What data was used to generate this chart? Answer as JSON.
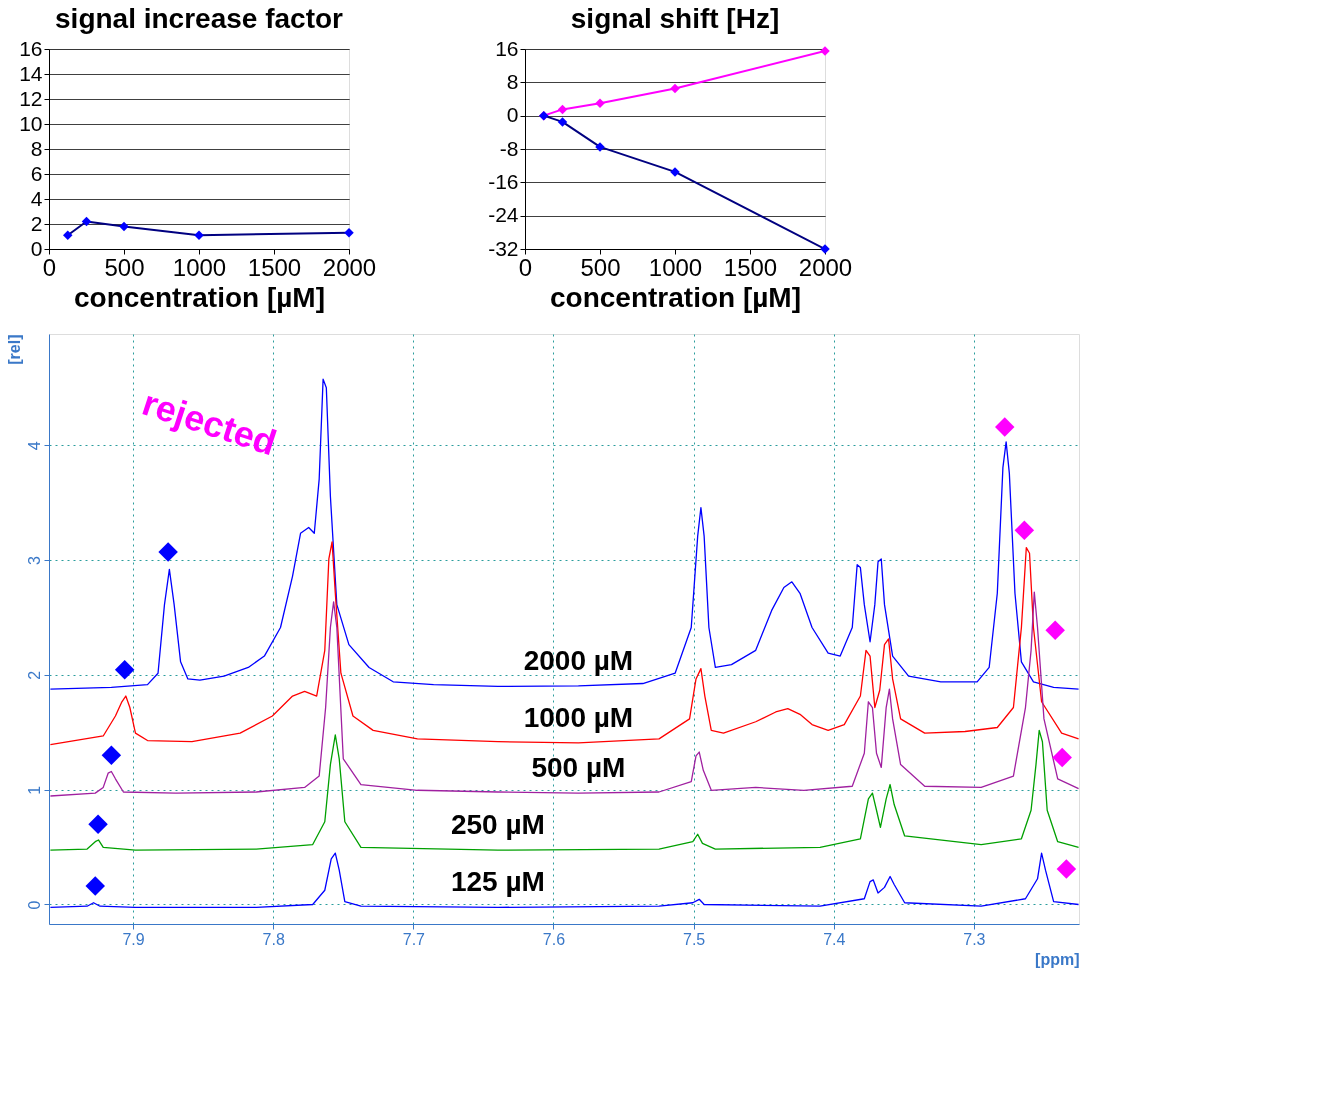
{
  "chart_data": [
    {
      "type": "line",
      "xlabel": "[ppm]",
      "ylabel": "[rel]",
      "xlim": [
        7.96,
        7.225
      ],
      "ylim": [
        -0.17,
        4.97
      ],
      "xticks": [
        7.9,
        7.8,
        7.7,
        7.6,
        7.5,
        7.4,
        7.3
      ],
      "yticks": [
        0,
        1,
        2,
        3,
        4
      ],
      "grid": true,
      "annotations": [
        "rejected"
      ],
      "series": [
        {
          "name": "2000 µM",
          "color": "#0000ff",
          "x": [
            7.959,
            7.9155,
            7.8897,
            7.8822,
            7.8776,
            7.8741,
            7.8707,
            7.8661,
            7.8609,
            7.8523,
            7.8351,
            7.8178,
            7.8063,
            7.7948,
            7.7862,
            7.7805,
            7.7747,
            7.7707,
            7.7672,
            7.7644,
            7.7621,
            7.7592,
            7.7546,
            7.746,
            7.7316,
            7.7144,
            7.6856,
            7.6397,
            7.5822,
            7.5362,
            7.5132,
            7.5017,
            7.4971,
            7.4948,
            7.4925,
            7.4891,
            7.4845,
            7.473,
            7.4557,
            7.4443,
            7.4356,
            7.4299,
            7.4241,
            7.4155,
            7.404,
            7.3954,
            7.3868,
            7.3833,
            7.381,
            7.3782,
            7.3741,
            7.3707,
            7.3684,
            7.3661,
            7.3638,
            7.358,
            7.3466,
            7.3236,
            7.2977,
            7.2891,
            7.2833,
            7.2793,
            7.277,
            7.2747,
            7.2707,
            7.2661,
            7.2575,
            7.2431,
            7.2253
          ],
          "values": [
            1.876,
            1.891,
            1.915,
            2.015,
            2.612,
            2.92,
            2.612,
            2.114,
            1.965,
            1.955,
            1.99,
            2.065,
            2.164,
            2.413,
            2.861,
            3.234,
            3.284,
            3.234,
            3.706,
            4.577,
            4.502,
            3.557,
            2.612,
            2.264,
            2.065,
            1.94,
            1.915,
            1.9,
            1.905,
            1.925,
            2.015,
            2.413,
            3.209,
            3.458,
            3.209,
            2.413,
            2.065,
            2.09,
            2.214,
            2.562,
            2.761,
            2.811,
            2.711,
            2.413,
            2.189,
            2.164,
            2.413,
            2.96,
            2.935,
            2.612,
            2.289,
            2.612,
            2.985,
            3.01,
            2.612,
            2.164,
            1.99,
            1.94,
            1.94,
            2.065,
            2.711,
            3.806,
            4.03,
            3.756,
            2.711,
            2.114,
            1.94,
            1.891,
            1.876
          ]
        },
        {
          "name": "1000 µM",
          "color": "#ff0000",
          "x": [
            7.959,
            7.9213,
            7.9126,
            7.908,
            7.9052,
            7.9023,
            7.8983,
            7.8897,
            7.858,
            7.8236,
            7.8006,
            7.7862,
            7.7776,
            7.769,
            7.7632,
            7.7603,
            7.758,
            7.7557,
            7.7517,
            7.7431,
            7.7287,
            7.6971,
            7.6397,
            7.5822,
            7.5247,
            7.5029,
            7.4983,
            7.4948,
            7.492,
            7.4874,
            7.4787,
            7.4557,
            7.4414,
            7.4328,
            7.4241,
            7.4155,
            7.404,
            7.3925,
            7.381,
            7.377,
            7.3741,
            7.3707,
            7.3672,
            7.3638,
            7.3609,
            7.358,
            7.3523,
            7.3351,
            7.3063,
            7.2833,
            7.2718,
            7.2661,
            7.2626,
            7.2603,
            7.2575,
            7.2517,
            7.2374,
            7.2253
          ],
          "values": [
            1.393,
            1.468,
            1.642,
            1.766,
            1.816,
            1.716,
            1.493,
            1.428,
            1.418,
            1.493,
            1.642,
            1.816,
            1.856,
            1.816,
            2.214,
            3.01,
            3.159,
            2.711,
            2.015,
            1.642,
            1.517,
            1.443,
            1.418,
            1.408,
            1.443,
            1.617,
            1.965,
            2.055,
            1.816,
            1.517,
            1.493,
            1.592,
            1.677,
            1.706,
            1.657,
            1.567,
            1.517,
            1.567,
            1.816,
            2.214,
            2.164,
            1.716,
            1.866,
            2.264,
            2.313,
            1.965,
            1.617,
            1.493,
            1.507,
            1.542,
            1.716,
            2.413,
            3.109,
            3.06,
            2.413,
            1.766,
            1.493,
            1.443
          ]
        },
        {
          "name": "500 µM",
          "color": "#a020a0",
          "x": [
            7.959,
            7.927,
            7.9213,
            7.9178,
            7.9155,
            7.9126,
            7.9069,
            7.8695,
            7.8121,
            7.7776,
            7.7672,
            7.7626,
            7.7592,
            7.7569,
            7.7546,
            7.75,
            7.7374,
            7.6971,
            7.6397,
            7.5822,
            7.5247,
            7.5017,
            7.4983,
            7.496,
            7.4931,
            7.4874,
            7.4557,
            7.4213,
            7.3868,
            7.3782,
            7.3753,
            7.3724,
            7.3695,
            7.3661,
            7.3626,
            7.3603,
            7.358,
            7.3523,
            7.3351,
            7.2948,
            7.2718,
            7.2632,
            7.2592,
            7.2569,
            7.2546,
            7.25,
            7.2402,
            7.2253
          ],
          "values": [
            0.945,
            0.97,
            1.02,
            1.144,
            1.159,
            1.095,
            0.98,
            0.97,
            0.98,
            1.02,
            1.119,
            1.716,
            2.413,
            2.637,
            2.413,
            1.269,
            1.045,
            0.995,
            0.98,
            0.97,
            0.98,
            1.07,
            1.294,
            1.328,
            1.169,
            0.995,
            1.02,
            0.995,
            1.03,
            1.318,
            1.766,
            1.716,
            1.318,
            1.194,
            1.716,
            1.876,
            1.617,
            1.219,
            1.03,
            1.02,
            1.119,
            1.716,
            2.214,
            2.721,
            2.413,
            1.617,
            1.095,
            1.01
          ]
        },
        {
          "name": "250 µM",
          "color": "#00a000",
          "x": [
            7.959,
            7.9328,
            7.927,
            7.9247,
            7.9213,
            7.8983,
            7.8121,
            7.7718,
            7.7632,
            7.7592,
            7.7557,
            7.7529,
            7.7489,
            7.7374,
            7.6397,
            7.5247,
            7.5006,
            7.4971,
            7.4937,
            7.4845,
            7.4098,
            7.381,
            7.3753,
            7.3724,
            7.3695,
            7.3667,
            7.3626,
            7.3598,
            7.3569,
            7.3494,
            7.2948,
            7.2661,
            7.2592,
            7.2557,
            7.2534,
            7.2511,
            7.2477,
            7.2402,
            7.2253
          ],
          "values": [
            0.473,
            0.483,
            0.547,
            0.562,
            0.498,
            0.473,
            0.483,
            0.522,
            0.721,
            1.219,
            1.478,
            1.269,
            0.721,
            0.498,
            0.473,
            0.483,
            0.547,
            0.612,
            0.532,
            0.483,
            0.498,
            0.572,
            0.92,
            0.97,
            0.821,
            0.672,
            0.92,
            1.045,
            0.871,
            0.597,
            0.522,
            0.572,
            0.821,
            1.219,
            1.517,
            1.418,
            0.821,
            0.547,
            0.498
          ]
        },
        {
          "name": "125 µM",
          "color": "#0000ff",
          "x": [
            7.959,
            7.9328,
            7.9282,
            7.9236,
            7.8983,
            7.8121,
            7.7718,
            7.7632,
            7.7586,
            7.7557,
            7.7529,
            7.7489,
            7.7374,
            7.6397,
            7.5247,
            7.5006,
            7.496,
            7.4925,
            7.4098,
            7.3782,
            7.3741,
            7.3718,
            7.3684,
            7.3638,
            7.3598,
            7.3569,
            7.3494,
            7.2948,
            7.2632,
            7.2546,
            7.2517,
            7.2489,
            7.2431,
            7.2253
          ],
          "values": [
            -0.025,
            -0.015,
            0.015,
            -0.015,
            -0.025,
            -0.025,
            0.0,
            0.124,
            0.398,
            0.448,
            0.299,
            0.025,
            -0.015,
            -0.025,
            -0.015,
            0.015,
            0.045,
            0.0,
            -0.015,
            0.05,
            0.199,
            0.214,
            0.1,
            0.149,
            0.244,
            0.174,
            0.015,
            -0.015,
            0.05,
            0.224,
            0.448,
            0.299,
            0.025,
            0.0
          ]
        },
        {
          "type": "scatter",
          "marker": "diamond",
          "color": "#0000ff",
          "x": [
            7.906,
            7.875,
            7.9155,
            7.925,
            7.927
          ],
          "values": [
            2.045,
            3.07,
            1.3,
            0.7,
            0.16
          ]
        },
        {
          "type": "scatter",
          "marker": "diamond",
          "color": "#ff00ff",
          "x": [
            7.278,
            7.264,
            7.242,
            7.237,
            7.234
          ],
          "values": [
            4.16,
            3.26,
            2.39,
            1.28,
            0.31
          ]
        }
      ]
    },
    {
      "type": "line",
      "title": "signal increase factor",
      "xlabel": "concentration [µM]",
      "xlim": [
        0,
        2000
      ],
      "xticks": [
        0,
        500,
        1000,
        1500,
        2000
      ],
      "ylim": [
        0,
        16
      ],
      "yticks": [
        0,
        2,
        4,
        6,
        8,
        10,
        12,
        14,
        16
      ],
      "grid": "y",
      "marker": "diamond",
      "series": [
        {
          "color": "#000080",
          "x": [
            125,
            250,
            500,
            1000,
            2000
          ],
          "values": [
            1.1,
            2.2,
            1.8,
            1.1,
            1.3
          ]
        }
      ]
    },
    {
      "type": "line",
      "title": "signal shift [Hz]",
      "xlabel": "concentration [µM]",
      "xlim": [
        0,
        2000
      ],
      "xticks": [
        0,
        500,
        1000,
        1500,
        2000
      ],
      "ylim": [
        -32,
        16
      ],
      "yticks": [
        -32,
        -24,
        -16,
        -8,
        0,
        8,
        16
      ],
      "grid": "y",
      "marker": "diamond",
      "series": [
        {
          "color": "#ff00ff",
          "x": [
            125,
            250,
            500,
            1000,
            2000
          ],
          "values": [
            0,
            1.5,
            3,
            6.5,
            15.5
          ]
        },
        {
          "color": "#000080",
          "x": [
            125,
            250,
            500,
            1000,
            2000
          ],
          "values": [
            0,
            -1.5,
            -7.5,
            -13.5,
            -32
          ]
        }
      ]
    }
  ]
}
